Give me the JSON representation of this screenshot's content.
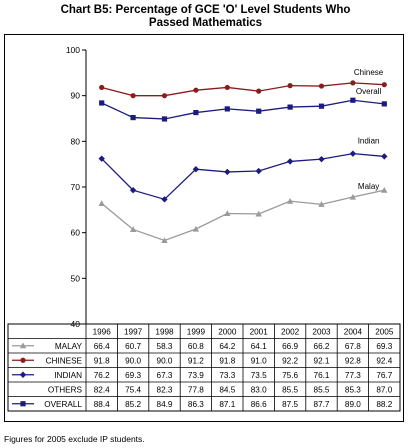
{
  "chart_data": {
    "type": "line",
    "title_line1": "Chart B5:  Percentage of GCE 'O' Level Students Who",
    "title_line2": "Passed Mathematics",
    "categories": [
      "1996",
      "1997",
      "1998",
      "1999",
      "2000",
      "2001",
      "2002",
      "2003",
      "2004",
      "2005"
    ],
    "ylim": [
      40,
      100
    ],
    "yticks": [
      40,
      50,
      60,
      70,
      80,
      90,
      100
    ],
    "grid": false,
    "series": [
      {
        "name": "MALAY",
        "label": "Malay",
        "values": [
          66.4,
          60.7,
          58.3,
          60.8,
          64.2,
          64.1,
          66.9,
          66.2,
          67.8,
          69.3
        ],
        "color": "#9a9a9a",
        "marker": "triangle"
      },
      {
        "name": "CHINESE",
        "label": "Chinese",
        "values": [
          91.8,
          90.0,
          90.0,
          91.2,
          91.8,
          91.0,
          92.2,
          92.1,
          92.8,
          92.4
        ],
        "color": "#8b1c1c",
        "marker": "circle"
      },
      {
        "name": "INDIAN",
        "label": "Indian",
        "values": [
          76.2,
          69.3,
          67.3,
          73.9,
          73.3,
          73.5,
          75.6,
          76.1,
          77.3,
          76.7
        ],
        "color": "#1c1c80",
        "marker": "diamond"
      },
      {
        "name": "OTHERS",
        "label": "",
        "values": [
          82.4,
          75.4,
          82.3,
          77.8,
          84.5,
          83.0,
          85.5,
          85.5,
          85.3,
          87.0
        ],
        "color": "#000000",
        "marker": "none"
      },
      {
        "name": "OVERALL",
        "label": "Overall",
        "values": [
          88.4,
          85.2,
          84.9,
          86.3,
          87.1,
          86.6,
          87.5,
          87.7,
          89.0,
          88.2
        ],
        "color": "#1c1c80",
        "marker": "square"
      }
    ],
    "table_display": [
      [
        "66.4",
        "60.7",
        "58.3",
        "60.8",
        "64.2",
        "64.1",
        "66.9",
        "66.2",
        "67.8",
        "69.3"
      ],
      [
        "91.8",
        "90.0",
        "90.0",
        "91.2",
        "91.8",
        "91.0",
        "92.2",
        "92.1",
        "92.8",
        "92.4"
      ],
      [
        "76.2",
        "69.3",
        "67.3",
        "73.9",
        "73.3",
        "73.5",
        "75.6",
        "76.1",
        "77.3",
        "76.7"
      ],
      [
        "82.4",
        "75.4",
        "82.3",
        "77.8",
        "84.5",
        "83.0",
        "85.5",
        "85.5",
        "85.3",
        "87.0"
      ],
      [
        "88.4",
        "85.2",
        "84.9",
        "86.3",
        "87.1",
        "86.6",
        "87.5",
        "87.7",
        "89.0",
        "88.2"
      ]
    ],
    "plotted_series": [
      "MALAY",
      "CHINESE",
      "INDIAN",
      "OVERALL"
    ],
    "footnote": "Figures for 2005 exclude IP students."
  }
}
